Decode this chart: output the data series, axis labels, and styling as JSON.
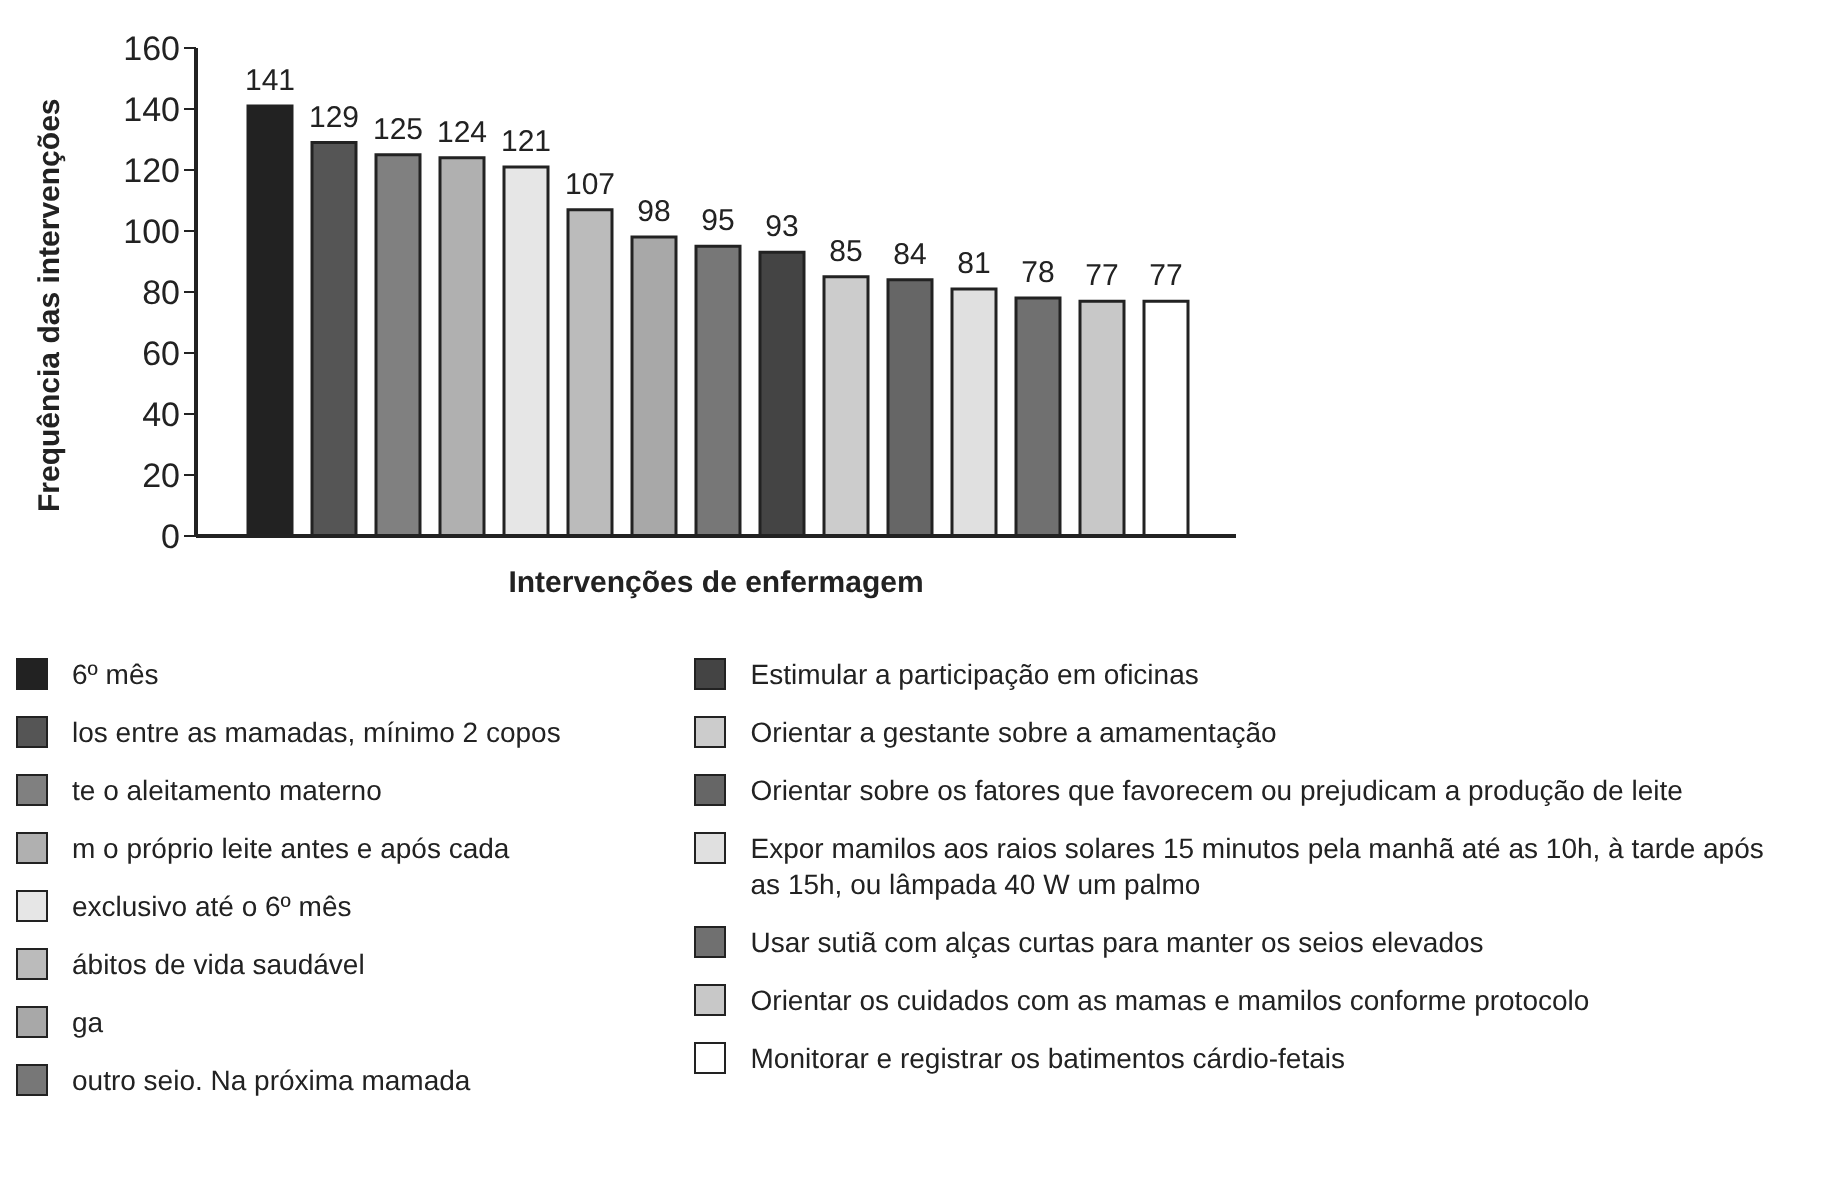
{
  "chart_data": {
    "type": "bar",
    "xlabel": "Intervenções de enfermagem",
    "ylabel": "Frequência das intervenções",
    "categories": [
      null
    ],
    "series": [
      {
        "name": "6º mês",
        "color": "#222222",
        "values": [
          141
        ]
      },
      {
        "name": "los entre as mamadas, mínimo 2 copos",
        "color": "#555555",
        "values": [
          129
        ]
      },
      {
        "name": "te o aleitamento materno",
        "color": "#808080",
        "values": [
          125
        ]
      },
      {
        "name": "m o próprio leite antes e após cada",
        "color": "#b0b0b0",
        "values": [
          124
        ]
      },
      {
        "name": "exclusivo até o 6º mês",
        "color": "#e6e6e6",
        "values": [
          121
        ]
      },
      {
        "name": "ábitos de vida saudável",
        "color": "#bbbbbb",
        "values": [
          107
        ]
      },
      {
        "name": "ga",
        "color": "#a8a8a8",
        "values": [
          98
        ]
      },
      {
        "name": "outro seio. Na próxima mamada",
        "color": "#777777",
        "values": [
          95
        ]
      },
      {
        "name": "Estimular a participação em oficinas",
        "color": "#444444",
        "values": [
          93
        ]
      },
      {
        "name": "Orientar a gestante sobre a amamentação",
        "color": "#cccccc",
        "values": [
          85
        ]
      },
      {
        "name": "Orientar sobre os fatores que favorecem ou prejudicam a produção de leite",
        "color": "#666666",
        "values": [
          84
        ]
      },
      {
        "name": "Expor mamilos aos raios solares 15 minutos pela manhã até as 10h, à tarde após as 15h, ou lâmpada 40 W um palmo",
        "color": "#e0e0e0",
        "values": [
          81
        ]
      },
      {
        "name": "Usar sutiã com alças curtas para manter os seios elevados",
        "color": "#707070",
        "values": [
          78
        ]
      },
      {
        "name": "Orientar os cuidados com as mamas e mamilos conforme protocolo",
        "color": "#c8c8c8",
        "values": [
          77
        ]
      },
      {
        "name": "Monitorar e registrar os batimentos cárdio-fetais",
        "color": "#ffffff",
        "values": [
          77
        ]
      }
    ],
    "ylim": [
      0,
      160
    ],
    "yticks": [
      0,
      20,
      40,
      60,
      80,
      100,
      120,
      140,
      160
    ],
    "data_labels": true,
    "grid": false,
    "legend": "bottom",
    "tick_labels": "y"
  }
}
